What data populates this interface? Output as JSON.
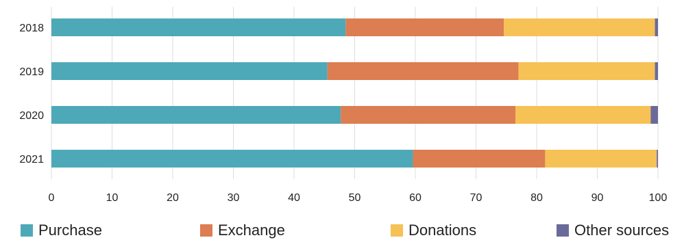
{
  "chart_data": {
    "type": "bar",
    "orientation": "horizontal",
    "stacked": true,
    "categories": [
      "2018",
      "2019",
      "2020",
      "2021"
    ],
    "series": [
      {
        "name": "Purchase",
        "color": "#4DA9B8",
        "values": [
          48.5,
          45.5,
          47.7,
          59.6
        ]
      },
      {
        "name": "Exchange",
        "color": "#DC7D52",
        "values": [
          26.1,
          31.5,
          28.8,
          21.8
        ]
      },
      {
        "name": "Donations",
        "color": "#F6C155",
        "values": [
          24.9,
          22.5,
          22.3,
          18.4
        ]
      },
      {
        "name": "Other sources",
        "color": "#6A6A9A",
        "values": [
          0.5,
          0.5,
          1.2,
          0.2
        ]
      }
    ],
    "xlim": [
      0,
      100
    ],
    "xticks": [
      0,
      10,
      20,
      30,
      40,
      50,
      60,
      70,
      80,
      90,
      100
    ],
    "grid": true,
    "legend": "bottom"
  }
}
